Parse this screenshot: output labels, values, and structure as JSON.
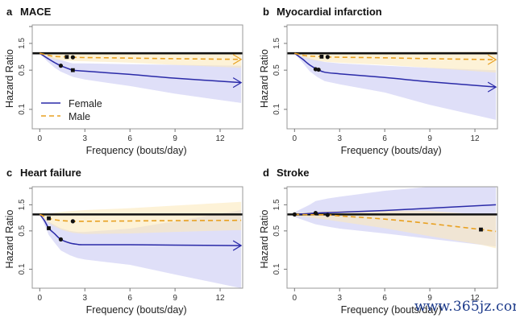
{
  "figure": {
    "watermark": "www.365jz.com"
  },
  "chart_data": [
    {
      "type": "line",
      "panel_letter": "a",
      "title": "MACE",
      "xlabel": "Frequency (bouts/day)",
      "ylabel": "Hazard Ratio",
      "xlim": [
        -0.5,
        13.5
      ],
      "y_scale": "log",
      "ylim": [
        0.045,
        3.2
      ],
      "xticks": [
        0,
        3,
        6,
        9,
        12
      ],
      "yticks": [
        {
          "value": 0.1,
          "label": "0.1"
        },
        {
          "value": 0.5,
          "label": "0.5"
        },
        {
          "value": 1.5,
          "label": "1.5"
        },
        {
          "value": 3.0,
          "label": ""
        }
      ],
      "reference_line": 1.0,
      "legend": {
        "placement": "bottom-left",
        "entries": [
          {
            "name": "Female",
            "style": "solid"
          },
          {
            "name": "Male",
            "style": "dashed"
          }
        ]
      },
      "series": [
        {
          "name": "Female",
          "color": "#2a2aa8",
          "band_color": "#c9c9f4",
          "x": [
            0,
            0.5,
            1,
            1.4,
            2,
            2.2,
            3,
            6,
            9,
            13.4
          ],
          "y": [
            1.0,
            0.82,
            0.68,
            0.6,
            0.52,
            0.5,
            0.48,
            0.42,
            0.36,
            0.3
          ],
          "lower": [
            1.0,
            0.72,
            0.55,
            0.47,
            0.4,
            0.38,
            0.34,
            0.26,
            0.19,
            0.13
          ],
          "upper": [
            1.0,
            0.92,
            0.82,
            0.76,
            0.68,
            0.66,
            0.66,
            0.64,
            0.62,
            0.6
          ],
          "markers": [
            {
              "x": 1.4,
              "y": 0.6,
              "shape": "circle"
            },
            {
              "x": 2.2,
              "y": 0.5,
              "shape": "square"
            }
          ],
          "arrow": true
        },
        {
          "name": "Male",
          "color": "#e8a020",
          "band_color": "#fbe9bd",
          "x": [
            0,
            0.5,
            1,
            1.8,
            2.2,
            3,
            6,
            9,
            13.4
          ],
          "y": [
            1.0,
            0.93,
            0.88,
            0.86,
            0.85,
            0.84,
            0.82,
            0.8,
            0.78
          ],
          "lower": [
            1.0,
            0.86,
            0.78,
            0.74,
            0.73,
            0.72,
            0.68,
            0.62,
            0.55
          ],
          "upper": [
            1.0,
            1.0,
            0.99,
            0.98,
            0.98,
            0.97,
            0.97,
            0.97,
            0.98
          ],
          "markers": [
            {
              "x": 1.8,
              "y": 0.86,
              "shape": "square"
            },
            {
              "x": 2.2,
              "y": 0.85,
              "shape": "circle"
            }
          ],
          "arrow": true
        }
      ]
    },
    {
      "type": "line",
      "panel_letter": "b",
      "title": "Myocardial infarction",
      "xlabel": "Frequency (bouts/day)",
      "ylabel": "Hazard Ratio",
      "xlim": [
        -0.5,
        13.5
      ],
      "y_scale": "log",
      "ylim": [
        0.045,
        3.2
      ],
      "xticks": [
        0,
        3,
        6,
        9,
        12
      ],
      "yticks": [
        {
          "value": 0.1,
          "label": "0.1"
        },
        {
          "value": 0.5,
          "label": "0.5"
        },
        {
          "value": 1.5,
          "label": "1.5"
        },
        {
          "value": 3.0,
          "label": ""
        }
      ],
      "reference_line": 1.0,
      "legend": null,
      "series": [
        {
          "name": "Female",
          "color": "#2a2aa8",
          "band_color": "#c9c9f4",
          "x": [
            0,
            0.5,
            1,
            1.5,
            2,
            3,
            6,
            9,
            13.4
          ],
          "y": [
            1.0,
            0.8,
            0.62,
            0.52,
            0.46,
            0.43,
            0.37,
            0.31,
            0.25
          ],
          "lower": [
            1.0,
            0.7,
            0.48,
            0.38,
            0.32,
            0.28,
            0.2,
            0.12,
            0.065
          ],
          "upper": [
            1.0,
            0.92,
            0.82,
            0.75,
            0.7,
            0.66,
            0.6,
            0.55,
            0.5
          ],
          "markers": [
            {
              "x": 1.4,
              "y": 0.52,
              "shape": "circle"
            },
            {
              "x": 1.6,
              "y": 0.51,
              "shape": "circle"
            }
          ],
          "arrow": true
        },
        {
          "name": "Male",
          "color": "#e8a020",
          "band_color": "#fbe9bd",
          "x": [
            0,
            0.5,
            1,
            1.8,
            2.2,
            3,
            6,
            9,
            13.4
          ],
          "y": [
            1.0,
            0.93,
            0.89,
            0.87,
            0.86,
            0.85,
            0.83,
            0.8,
            0.77
          ],
          "lower": [
            1.0,
            0.86,
            0.78,
            0.72,
            0.7,
            0.68,
            0.62,
            0.55,
            0.45
          ],
          "upper": [
            1.0,
            1.02,
            1.03,
            1.04,
            1.04,
            1.04,
            1.05,
            1.06,
            1.07
          ],
          "markers": [
            {
              "x": 1.8,
              "y": 0.87,
              "shape": "square"
            },
            {
              "x": 2.2,
              "y": 0.86,
              "shape": "circle"
            }
          ],
          "arrow": true
        }
      ]
    },
    {
      "type": "line",
      "panel_letter": "c",
      "title": "Heart failure",
      "xlabel": "Frequency (bouts/day)",
      "ylabel": "Hazard Ratio",
      "xlim": [
        -0.5,
        13.5
      ],
      "y_scale": "log",
      "ylim": [
        0.045,
        3.2
      ],
      "xticks": [
        0,
        3,
        6,
        9,
        12
      ],
      "yticks": [
        {
          "value": 0.1,
          "label": "0.1"
        },
        {
          "value": 0.5,
          "label": "0.5"
        },
        {
          "value": 1.5,
          "label": "1.5"
        },
        {
          "value": 3.0,
          "label": ""
        }
      ],
      "reference_line": 1.0,
      "legend": null,
      "series": [
        {
          "name": "Female",
          "color": "#2a2aa8",
          "band_color": "#c9c9f4",
          "x": [
            0,
            0.3,
            0.6,
            1,
            1.4,
            2,
            2.5,
            3,
            6,
            9,
            13.4
          ],
          "y": [
            1.0,
            0.78,
            0.56,
            0.44,
            0.35,
            0.3,
            0.285,
            0.28,
            0.28,
            0.275,
            0.27
          ],
          "lower": [
            1.0,
            0.66,
            0.42,
            0.3,
            0.22,
            0.18,
            0.16,
            0.15,
            0.12,
            0.08,
            0.045
          ],
          "upper": [
            1.0,
            0.9,
            0.74,
            0.64,
            0.56,
            0.5,
            0.48,
            0.48,
            0.55,
            0.75,
            1.2
          ],
          "markers": [
            {
              "x": 0.6,
              "y": 0.56,
              "shape": "square"
            },
            {
              "x": 1.4,
              "y": 0.35,
              "shape": "circle"
            }
          ],
          "arrow": true
        },
        {
          "name": "Male",
          "color": "#e8a020",
          "band_color": "#fbe9bd",
          "x": [
            0,
            0.3,
            0.6,
            1,
            1.5,
            2.2,
            3,
            6,
            9,
            13.4
          ],
          "y": [
            1.0,
            0.92,
            0.85,
            0.8,
            0.77,
            0.75,
            0.75,
            0.76,
            0.77,
            0.78
          ],
          "lower": [
            1.0,
            0.82,
            0.7,
            0.6,
            0.52,
            0.46,
            0.44,
            0.45,
            0.48,
            0.52
          ],
          "upper": [
            1.0,
            1.02,
            1.04,
            1.08,
            1.12,
            1.16,
            1.2,
            1.3,
            1.45,
            1.7
          ],
          "markers": [
            {
              "x": 0.6,
              "y": 0.85,
              "shape": "square"
            },
            {
              "x": 2.2,
              "y": 0.75,
              "shape": "circle"
            }
          ],
          "arrow": false
        }
      ]
    },
    {
      "type": "line",
      "panel_letter": "d",
      "title": "Stroke",
      "xlabel": "Frequency (bouts/day)",
      "ylabel": "Hazard Ratio",
      "xlim": [
        -0.5,
        13.5
      ],
      "y_scale": "log",
      "ylim": [
        0.045,
        3.2
      ],
      "xticks": [
        0,
        3,
        6,
        9,
        12
      ],
      "yticks": [
        {
          "value": 0.1,
          "label": "0.1"
        },
        {
          "value": 0.5,
          "label": "0.5"
        },
        {
          "value": 1.5,
          "label": "1.5"
        },
        {
          "value": 3.0,
          "label": ""
        }
      ],
      "reference_line": 1.0,
      "legend": null,
      "series": [
        {
          "name": "Female",
          "color": "#2a2aa8",
          "band_color": "#c9c9f4",
          "x": [
            0,
            1,
            1.4,
            2.2,
            3,
            6,
            9,
            13.4
          ],
          "y": [
            1.0,
            1.04,
            1.06,
            1.08,
            1.1,
            1.18,
            1.3,
            1.5
          ],
          "lower": [
            0.9,
            0.72,
            0.66,
            0.6,
            0.55,
            0.45,
            0.36,
            0.26
          ],
          "upper": [
            1.1,
            1.5,
            1.75,
            1.95,
            2.1,
            2.7,
            3.2,
            3.2
          ],
          "markers": [
            {
              "x": 0,
              "y": 1.0,
              "shape": "circle"
            },
            {
              "x": 1.4,
              "y": 1.06,
              "shape": "circle"
            }
          ],
          "arrow": false
        },
        {
          "name": "Male",
          "color": "#e8a020",
          "band_color": "#fbe9bd",
          "x": [
            0,
            1,
            2.2,
            3,
            6,
            9,
            12.4,
            13.4
          ],
          "y": [
            1.0,
            0.99,
            0.98,
            0.94,
            0.82,
            0.68,
            0.53,
            0.49
          ],
          "lower": [
            0.94,
            0.88,
            0.8,
            0.74,
            0.56,
            0.4,
            0.28,
            0.24
          ],
          "upper": [
            1.06,
            1.1,
            1.16,
            1.16,
            1.18,
            1.16,
            1.0,
            0.98
          ],
          "markers": [
            {
              "x": 2.2,
              "y": 0.98,
              "shape": "circle"
            },
            {
              "x": 12.4,
              "y": 0.53,
              "shape": "square"
            }
          ],
          "arrow": false
        }
      ]
    }
  ]
}
